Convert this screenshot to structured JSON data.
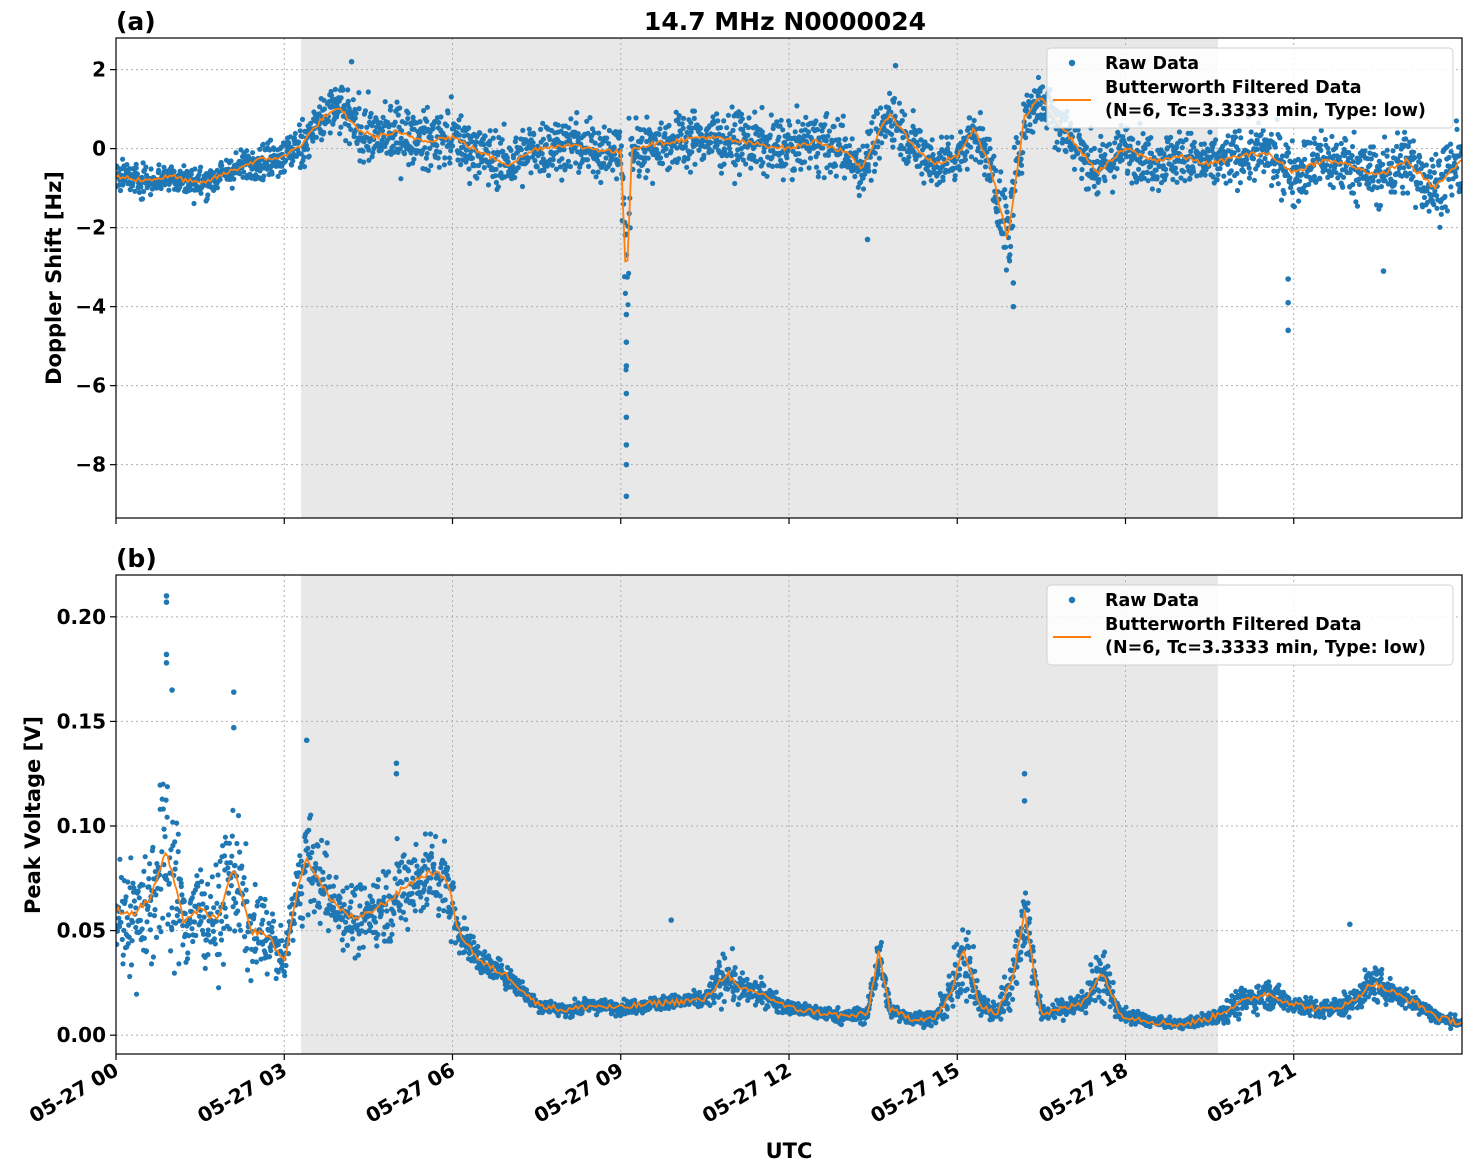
{
  "chart_data": [
    {
      "id": "a",
      "type": "scatter",
      "panel_label": "(a)",
      "title": "14.7 MHz N0000024",
      "ylabel": "Doppler Shift [Hz]",
      "xlabel": "",
      "xlim": [
        0,
        24
      ],
      "ylim": [
        -9.35,
        2.8
      ],
      "yticks": [
        2,
        0,
        -2,
        -4,
        -6,
        -8
      ],
      "ytick_labels": [
        "2",
        "0",
        "−2",
        "−4",
        "−6",
        "−8"
      ],
      "xticks": [
        0,
        3,
        6,
        9,
        12,
        15,
        18,
        21
      ],
      "xtick_labels": [],
      "grid": true,
      "night_shading": [
        3.3,
        19.65
      ],
      "legend": {
        "placement": "top-right",
        "raw_label": "Raw Data",
        "filtered_label_line1": "Butterworth Filtered Data",
        "filtered_label_line2": "(N=6, Tc=3.3333 min, Type: low)"
      },
      "colors": {
        "raw": "#1f77b4",
        "filtered": "#ff7f0e",
        "shade": "#e8e8e8"
      },
      "series": [
        {
          "name": "Raw Data",
          "x": [
            0,
            0.5,
            1,
            1.5,
            2,
            2.5,
            3,
            3.3,
            3.7,
            4,
            4.3,
            4.6,
            5,
            5.5,
            6,
            6.5,
            7,
            7.5,
            8,
            8.5,
            9,
            9.1,
            9.2,
            9.5,
            10,
            10.5,
            11,
            11.5,
            12,
            12.5,
            13,
            13.3,
            13.5,
            13.8,
            14.2,
            14.6,
            15,
            15.3,
            15.6,
            15.9,
            16.2,
            16.5,
            17,
            17.5,
            18,
            18.5,
            19,
            19.5,
            20,
            20.5,
            21,
            21.5,
            22,
            22.5,
            23,
            23.5,
            24
          ],
          "y": [
            -0.7,
            -0.8,
            -0.7,
            -0.9,
            -0.6,
            -0.3,
            -0.2,
            0.1,
            0.8,
            1.0,
            0.5,
            0.3,
            0.4,
            0.2,
            0.3,
            -0.1,
            -0.4,
            0.0,
            0.1,
            0.0,
            -0.1,
            -3.5,
            0.0,
            0.1,
            0.2,
            0.3,
            0.2,
            0.1,
            0.0,
            0.2,
            -0.1,
            -0.5,
            0.1,
            0.9,
            0.1,
            -0.4,
            -0.2,
            0.5,
            -0.5,
            -2.3,
            0.8,
            1.3,
            0.3,
            -0.6,
            0.0,
            -0.3,
            -0.2,
            -0.4,
            -0.2,
            -0.1,
            -0.6,
            -0.3,
            -0.4,
            -0.7,
            -0.3,
            -1.0,
            -0.3
          ],
          "spread": [
            0.35,
            0.35,
            0.35,
            0.35,
            0.35,
            0.4,
            0.45,
            0.55,
            0.6,
            0.65,
            0.65,
            0.65,
            0.65,
            0.65,
            0.65,
            0.65,
            0.65,
            0.65,
            0.65,
            0.65,
            0.65,
            3.0,
            0.65,
            0.65,
            0.65,
            0.65,
            0.65,
            0.65,
            0.65,
            0.65,
            0.65,
            0.6,
            0.65,
            0.65,
            0.6,
            0.6,
            0.55,
            0.55,
            0.6,
            1.2,
            0.6,
            0.6,
            0.6,
            0.6,
            0.6,
            0.6,
            0.6,
            0.6,
            0.6,
            0.65,
            0.7,
            0.7,
            0.7,
            0.7,
            0.75,
            0.8,
            0.75
          ],
          "outliers": [
            [
              9.1,
              -8.8
            ],
            [
              9.1,
              -8.0
            ],
            [
              9.1,
              -7.5
            ],
            [
              9.1,
              -6.8
            ],
            [
              9.1,
              -6.2
            ],
            [
              9.1,
              -5.5
            ],
            [
              9.1,
              -4.9
            ],
            [
              9.1,
              -4.2
            ],
            [
              20.9,
              -4.6
            ],
            [
              20.9,
              -3.9
            ],
            [
              20.9,
              -3.3
            ],
            [
              16.0,
              -4.0
            ],
            [
              16.0,
              -3.4
            ],
            [
              13.4,
              -2.3
            ],
            [
              22.6,
              -3.1
            ],
            [
              4.2,
              2.2
            ],
            [
              13.9,
              2.1
            ]
          ]
        },
        {
          "name": "Butterworth Filtered Data",
          "x": [
            0,
            0.5,
            1,
            1.5,
            2,
            2.5,
            3,
            3.3,
            3.7,
            4,
            4.3,
            4.6,
            5,
            5.5,
            6,
            6.5,
            7,
            7.5,
            8,
            8.5,
            9,
            9.1,
            9.2,
            9.5,
            10,
            10.5,
            11,
            11.5,
            12,
            12.5,
            13,
            13.3,
            13.5,
            13.8,
            14.2,
            14.6,
            15,
            15.3,
            15.6,
            15.9,
            16.2,
            16.5,
            17,
            17.5,
            18,
            18.5,
            19,
            19.5,
            20,
            20.5,
            21,
            21.5,
            22,
            22.5,
            23,
            23.5,
            24
          ],
          "y": [
            -0.7,
            -0.8,
            -0.7,
            -0.9,
            -0.6,
            -0.3,
            -0.2,
            0.1,
            0.8,
            1.0,
            0.5,
            0.3,
            0.4,
            0.2,
            0.3,
            -0.1,
            -0.4,
            0.0,
            0.1,
            0.0,
            -0.1,
            -3.5,
            0.0,
            0.1,
            0.2,
            0.3,
            0.2,
            0.1,
            0.0,
            0.2,
            -0.1,
            -0.5,
            0.1,
            0.9,
            0.1,
            -0.4,
            -0.2,
            0.5,
            -0.5,
            -2.3,
            0.8,
            1.3,
            0.3,
            -0.6,
            0.0,
            -0.3,
            -0.2,
            -0.4,
            -0.2,
            -0.1,
            -0.6,
            -0.3,
            -0.4,
            -0.7,
            -0.3,
            -1.0,
            -0.3
          ]
        }
      ]
    },
    {
      "id": "b",
      "type": "scatter",
      "panel_label": "(b)",
      "title": "",
      "ylabel": "Peak Voltage [V]",
      "xlabel": "UTC",
      "xlim": [
        0,
        24
      ],
      "ylim": [
        -0.009,
        0.22
      ],
      "yticks": [
        0.2,
        0.15,
        0.1,
        0.05,
        0.0
      ],
      "ytick_labels": [
        "0.20",
        "0.15",
        "0.10",
        "0.05",
        "0.00"
      ],
      "xticks": [
        0,
        3,
        6,
        9,
        12,
        15,
        18,
        21
      ],
      "xtick_labels": [
        "05-27 00",
        "05-27 03",
        "05-27 06",
        "05-27 09",
        "05-27 12",
        "05-27 15",
        "05-27 18",
        "05-27 21"
      ],
      "grid": true,
      "night_shading": [
        3.3,
        19.65
      ],
      "legend": {
        "placement": "top-right",
        "raw_label": "Raw Data",
        "filtered_label_line1": "Butterworth Filtered Data",
        "filtered_label_line2": "(N=6, Tc=3.3333 min, Type: low)"
      },
      "colors": {
        "raw": "#1f77b4",
        "filtered": "#ff7f0e",
        "shade": "#e8e8e8"
      },
      "series": [
        {
          "name": "Raw Data",
          "x": [
            0,
            0.3,
            0.6,
            0.9,
            1.2,
            1.5,
            1.8,
            2.1,
            2.4,
            2.7,
            3.0,
            3.2,
            3.4,
            3.7,
            4.0,
            4.3,
            4.6,
            4.9,
            5.2,
            5.6,
            5.9,
            6.1,
            6.5,
            7.0,
            7.5,
            8.0,
            8.5,
            9.0,
            9.5,
            10.0,
            10.5,
            10.9,
            11.1,
            11.5,
            12.0,
            12.5,
            13.0,
            13.4,
            13.6,
            13.8,
            14.2,
            14.6,
            14.9,
            15.1,
            15.4,
            15.7,
            16.0,
            16.2,
            16.5,
            16.8,
            17.2,
            17.6,
            17.9,
            18.2,
            18.6,
            19.0,
            19.5,
            20.0,
            20.5,
            21.0,
            21.5,
            22.0,
            22.4,
            22.8,
            23.2,
            23.6,
            24.0
          ],
          "y": [
            0.06,
            0.058,
            0.065,
            0.088,
            0.055,
            0.06,
            0.055,
            0.08,
            0.05,
            0.048,
            0.035,
            0.065,
            0.085,
            0.07,
            0.06,
            0.055,
            0.06,
            0.065,
            0.072,
            0.078,
            0.075,
            0.05,
            0.035,
            0.028,
            0.015,
            0.012,
            0.014,
            0.013,
            0.015,
            0.016,
            0.017,
            0.03,
            0.022,
            0.02,
            0.013,
            0.011,
            0.009,
            0.01,
            0.04,
            0.012,
            0.008,
            0.008,
            0.02,
            0.042,
            0.015,
            0.01,
            0.028,
            0.06,
            0.01,
            0.012,
            0.015,
            0.03,
            0.01,
            0.008,
            0.006,
            0.005,
            0.008,
            0.015,
            0.02,
            0.015,
            0.012,
            0.015,
            0.025,
            0.02,
            0.015,
            0.008,
            0.006
          ],
          "spread": [
            0.02,
            0.025,
            0.03,
            0.04,
            0.025,
            0.02,
            0.02,
            0.03,
            0.02,
            0.015,
            0.008,
            0.015,
            0.02,
            0.018,
            0.015,
            0.015,
            0.015,
            0.018,
            0.018,
            0.018,
            0.02,
            0.008,
            0.006,
            0.005,
            0.003,
            0.003,
            0.003,
            0.003,
            0.003,
            0.003,
            0.004,
            0.012,
            0.007,
            0.005,
            0.003,
            0.003,
            0.003,
            0.004,
            0.012,
            0.003,
            0.003,
            0.003,
            0.01,
            0.02,
            0.006,
            0.004,
            0.012,
            0.02,
            0.003,
            0.004,
            0.006,
            0.012,
            0.003,
            0.003,
            0.002,
            0.002,
            0.003,
            0.006,
            0.006,
            0.004,
            0.004,
            0.005,
            0.008,
            0.005,
            0.004,
            0.003,
            0.002
          ],
          "outliers": [
            [
              0.9,
              0.21
            ],
            [
              0.9,
              0.207
            ],
            [
              0.9,
              0.182
            ],
            [
              0.9,
              0.178
            ],
            [
              1.0,
              0.165
            ],
            [
              2.1,
              0.164
            ],
            [
              2.1,
              0.147
            ],
            [
              3.4,
              0.141
            ],
            [
              5.0,
              0.13
            ],
            [
              5.0,
              0.125
            ],
            [
              16.2,
              0.125
            ],
            [
              16.2,
              0.112
            ],
            [
              9.9,
              0.055
            ],
            [
              22.0,
              0.053
            ]
          ]
        },
        {
          "name": "Butterworth Filtered Data",
          "x": [
            0,
            0.3,
            0.6,
            0.9,
            1.2,
            1.5,
            1.8,
            2.1,
            2.4,
            2.7,
            3.0,
            3.2,
            3.4,
            3.7,
            4.0,
            4.3,
            4.6,
            4.9,
            5.2,
            5.6,
            5.9,
            6.1,
            6.5,
            7.0,
            7.5,
            8.0,
            8.5,
            9.0,
            9.5,
            10.0,
            10.5,
            10.9,
            11.1,
            11.5,
            12.0,
            12.5,
            13.0,
            13.4,
            13.6,
            13.8,
            14.2,
            14.6,
            14.9,
            15.1,
            15.4,
            15.7,
            16.0,
            16.2,
            16.5,
            16.8,
            17.2,
            17.6,
            17.9,
            18.2,
            18.6,
            19.0,
            19.5,
            20.0,
            20.5,
            21.0,
            21.5,
            22.0,
            22.4,
            22.8,
            23.2,
            23.6,
            24.0
          ],
          "y": [
            0.06,
            0.058,
            0.065,
            0.088,
            0.055,
            0.06,
            0.055,
            0.08,
            0.05,
            0.048,
            0.035,
            0.065,
            0.085,
            0.07,
            0.06,
            0.055,
            0.06,
            0.065,
            0.072,
            0.078,
            0.075,
            0.05,
            0.035,
            0.028,
            0.015,
            0.012,
            0.014,
            0.013,
            0.015,
            0.016,
            0.017,
            0.03,
            0.022,
            0.02,
            0.013,
            0.011,
            0.009,
            0.01,
            0.04,
            0.012,
            0.008,
            0.008,
            0.02,
            0.042,
            0.015,
            0.01,
            0.028,
            0.06,
            0.01,
            0.012,
            0.015,
            0.03,
            0.01,
            0.008,
            0.006,
            0.005,
            0.008,
            0.015,
            0.02,
            0.015,
            0.012,
            0.015,
            0.025,
            0.02,
            0.015,
            0.008,
            0.006
          ]
        }
      ]
    }
  ]
}
